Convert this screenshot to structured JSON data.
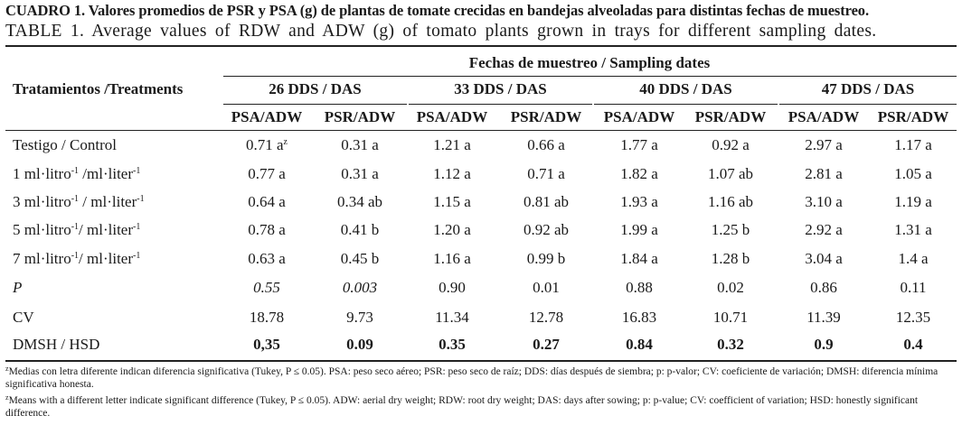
{
  "caption": {
    "es": "CUADRO 1. Valores promedios de PSR y PSA (g) de plantas de tomate crecidas en bandejas alveoladas para distintas fechas de muestreo.",
    "en": "TABLE 1. Average values of RDW and ADW (g) of tomato plants grown in trays for different sampling dates."
  },
  "header": {
    "treatments": "Tratamientos /Treatments",
    "sampling_dates": "Fechas de muestreo / Sampling dates",
    "dates": [
      "26 DDS / DAS",
      "33 DDS / DAS",
      "40 DDS / DAS",
      "47 DDS / DAS"
    ],
    "columns": [
      "PSA/ADW",
      "PSR/ADW",
      "PSA/ADW",
      "PSR/ADW",
      "PSA/ADW",
      "PSR/ADW",
      "PSA/ADW",
      "PSR/ADW"
    ]
  },
  "rows": [
    {
      "label": "Testigo / Control",
      "values": [
        "0.71 a",
        "0.31 a",
        "1.21 a",
        "0.66 a",
        "1.77 a",
        "0.92 a",
        "2.97 a",
        "1.17 a"
      ]
    },
    {
      "label": "1 ml·litro-1 /ml·liter-1",
      "values": [
        "0.77 a",
        "0.31 a",
        "1.12 a",
        "0.71 a",
        "1.82 a",
        "1.07 ab",
        "2.81 a",
        "1.05 a"
      ]
    },
    {
      "label": "3 ml·litro-1 / ml·liter-1",
      "values": [
        "0.64 a",
        "0.34 ab",
        "1.15 a",
        "0.81 ab",
        "1.93 a",
        "1.16 ab",
        "3.10 a",
        "1.19 a"
      ]
    },
    {
      "label": "5 ml·litro-1/ ml·liter-1",
      "values": [
        "0.78 a",
        "0.41 b",
        "1.20 a",
        "0.92 ab",
        "1.99 a",
        "1.25 b",
        "2.92 a",
        "1.31 a"
      ]
    },
    {
      "label": "7 ml·litro-1/ ml·liter-1",
      "values": [
        "0.63 a",
        "0.45 b",
        "1.16 a",
        "0.99 b",
        "1.84 a",
        "1.28 b",
        "3.04 a",
        "1.4 a"
      ]
    },
    {
      "label": "P",
      "values": [
        "0.55",
        "0.003",
        "0.90",
        "0.01",
        "0.88",
        "0.02",
        "0.86",
        "0.11"
      ]
    },
    {
      "label": "CV",
      "values": [
        "18.78",
        "9.73",
        "11.34",
        "12.78",
        "16.83",
        "10.71",
        "11.39",
        "12.35"
      ]
    },
    {
      "label": "DMSH / HSD",
      "values": [
        "0,35",
        "0.09",
        "0.35",
        "0.27",
        "0.84",
        "0.32",
        "0.9",
        "0.4"
      ]
    }
  ],
  "notes": {
    "es": "zMedias con letra diferente indican diferencia significativa (Tukey, P ≤ 0.05). PSA: peso seco aéreo; PSR: peso seco de raíz; DDS: días después de siembra; p: p-valor; CV: coeficiente de variación; DMSH: diferencia mínima significativa honesta.",
    "en": "zMeans with a different letter indicate significant difference (Tukey, P ≤ 0.05). ADW: aerial dry weight; RDW: root dry weight; DAS: days after sowing; p: p-value; CV: coefficient of variation; HSD: honestly significant difference."
  }
}
